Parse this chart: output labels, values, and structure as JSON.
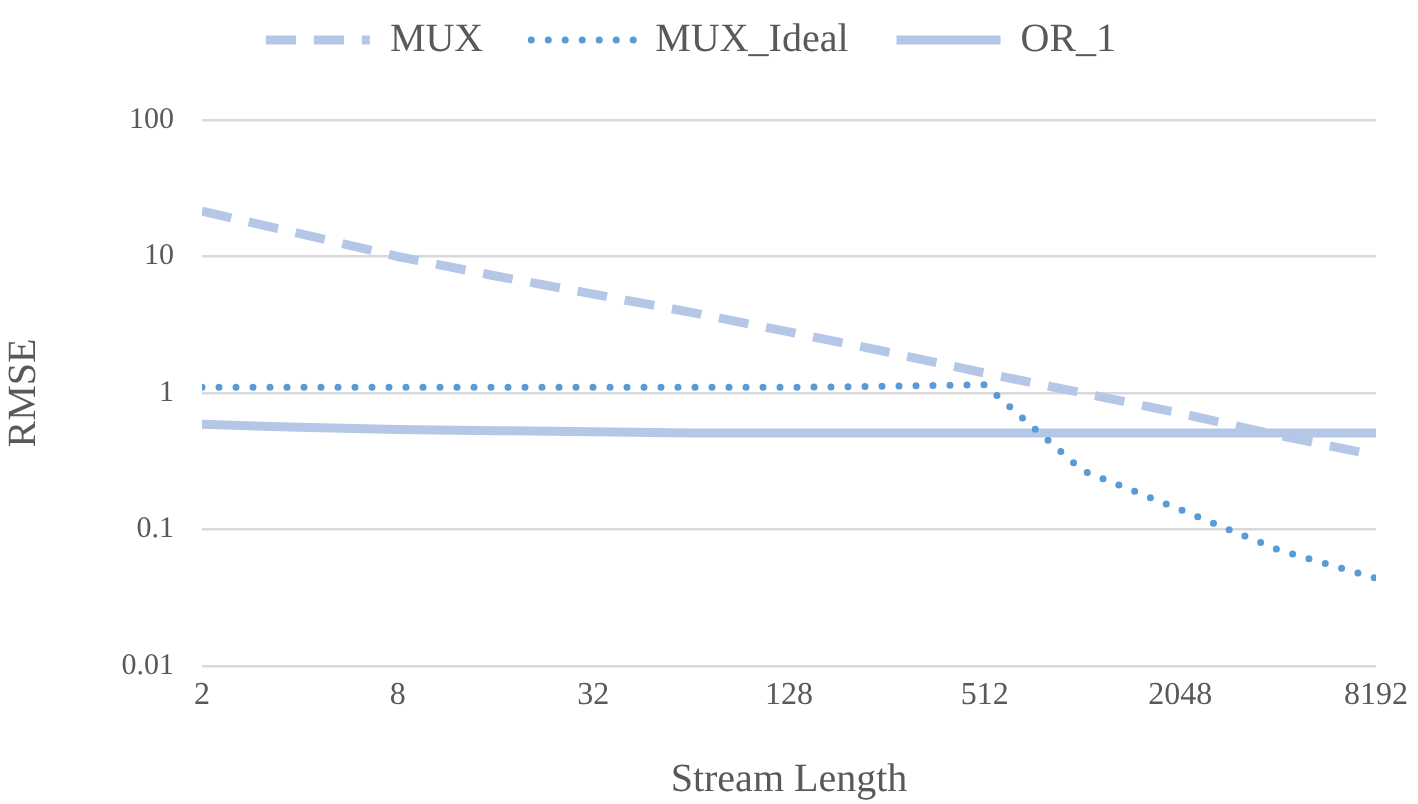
{
  "chart_data": {
    "type": "line",
    "xlabel": "Stream Length",
    "ylabel": "RMSE",
    "x": [
      2,
      4,
      8,
      16,
      32,
      64,
      128,
      256,
      512,
      1024,
      2048,
      4096,
      8192
    ],
    "xlim": [
      2,
      8192
    ],
    "xticks": [
      2,
      8,
      32,
      128,
      512,
      2048,
      8192
    ],
    "ylim": [
      0.01,
      100
    ],
    "yticks": [
      0.01,
      0.1,
      1,
      10,
      100
    ],
    "log": "xy",
    "grid": "y",
    "legend": "top",
    "marker": "none",
    "series": [
      {
        "name": "MUX",
        "color": "#b4c7e7",
        "line_style": "dashed",
        "values": [
          21.5,
          14.7,
          10,
          7.2,
          5.3,
          3.9,
          2.8,
          2.0,
          1.4,
          1.0,
          0.71,
          0.49,
          0.35
        ]
      },
      {
        "name": "MUX_Ideal",
        "color": "#5b9bd5",
        "line_style": "dotted",
        "values": [
          1.1,
          1.1,
          1.1,
          1.1,
          1.1,
          1.1,
          1.1,
          1.12,
          1.15,
          0.27,
          0.14,
          0.071,
          0.044
        ]
      },
      {
        "name": "OR_1",
        "color": "#b4c7e7",
        "line_style": "solid",
        "values": [
          0.59,
          0.56,
          0.54,
          0.53,
          0.52,
          0.51,
          0.51,
          0.51,
          0.51,
          0.51,
          0.51,
          0.51,
          0.51
        ]
      }
    ]
  }
}
